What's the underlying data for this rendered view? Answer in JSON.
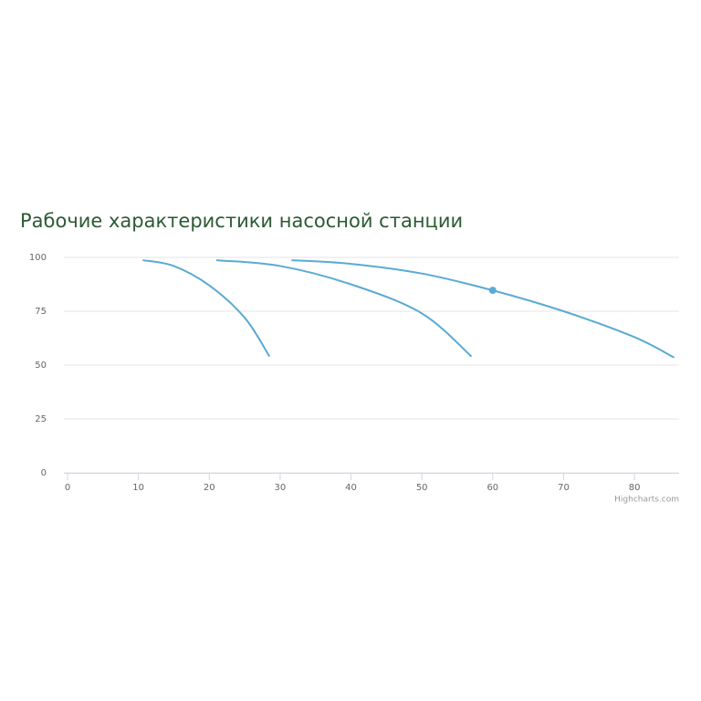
{
  "chart_data": {
    "type": "line",
    "title": "Рабочие характеристики насосной станции",
    "credits": "Highcharts.com",
    "series": [
      {
        "color": "#5aaad4",
        "x": [
          10.6,
          15,
          20,
          25,
          28.5
        ],
        "values": [
          98.7,
          96,
          87,
          72,
          54
        ]
      },
      {
        "color": "#5aaad4",
        "x": [
          21,
          30,
          40,
          50,
          57
        ],
        "values": [
          98.7,
          96,
          87.5,
          74,
          54
        ]
      },
      {
        "color": "#5aaad4",
        "x": [
          31.6,
          40,
          50,
          60,
          70,
          80,
          85.6
        ],
        "values": [
          98.7,
          97,
          92.5,
          84.7,
          75,
          63,
          53.5
        ]
      }
    ],
    "highlight": {
      "series": 2,
      "index": 3
    },
    "xlim": [
      0,
      86.3
    ],
    "xticks": [
      0,
      10,
      20,
      30,
      40,
      50,
      60,
      70,
      80
    ],
    "ylim": [
      0,
      100
    ],
    "yticks": [
      0,
      25,
      50,
      75,
      100
    ],
    "grid": true
  }
}
